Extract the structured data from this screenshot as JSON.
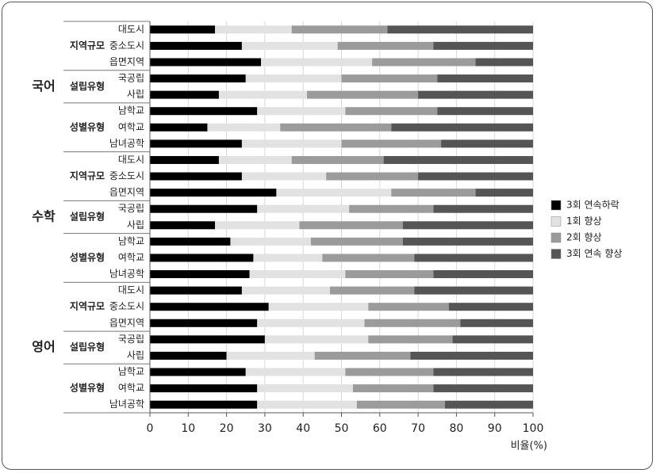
{
  "chart_data": {
    "type": "stacked-hbar",
    "groups": [
      {
        "name": "국어",
        "subgroups": [
          {
            "name": "지역규모",
            "categories": [
              "대도시",
              "중소도시",
              "읍면지역"
            ]
          },
          {
            "name": "설립유형",
            "categories": [
              "국공립",
              "사립"
            ]
          },
          {
            "name": "성별유형",
            "categories": [
              "남학교",
              "여학교",
              "남녀공학"
            ]
          }
        ]
      },
      {
        "name": "수학",
        "subgroups": [
          {
            "name": "지역규모",
            "categories": [
              "대도시",
              "중소도시",
              "읍면지역"
            ]
          },
          {
            "name": "설립유형",
            "categories": [
              "국공립",
              "사립"
            ]
          },
          {
            "name": "성별유형",
            "categories": [
              "남학교",
              "여학교",
              "남녀공학"
            ]
          }
        ]
      },
      {
        "name": "영어",
        "subgroups": [
          {
            "name": "지역규모",
            "categories": [
              "대도시",
              "중소도시",
              "읍면지역"
            ]
          },
          {
            "name": "설립유형",
            "categories": [
              "국공립",
              "사립"
            ]
          },
          {
            "name": "성별유형",
            "categories": [
              "남학교",
              "여학교",
              "남녀공학"
            ]
          }
        ]
      }
    ],
    "series": [
      {
        "name": "3회 연속하락",
        "color": "#000000",
        "values": [
          17,
          24,
          29,
          25,
          18,
          28,
          15,
          24,
          18,
          24,
          33,
          28,
          17,
          21,
          27,
          26,
          24,
          31,
          28,
          30,
          20,
          25,
          28,
          28
        ]
      },
      {
        "name": "1회 향상",
        "color": "#e2e2e2",
        "values": [
          20,
          25,
          29,
          25,
          23,
          23,
          19,
          26,
          19,
          22,
          30,
          24,
          22,
          21,
          18,
          25,
          23,
          26,
          28,
          27,
          23,
          26,
          25,
          26
        ]
      },
      {
        "name": "2회 향상",
        "color": "#9b9b9b",
        "values": [
          25,
          25,
          27,
          25,
          29,
          24,
          29,
          26,
          24,
          24,
          22,
          22,
          27,
          24,
          24,
          23,
          22,
          21,
          25,
          22,
          25,
          23,
          21,
          23
        ]
      },
      {
        "name": "3회 연속 향상",
        "color": "#555555",
        "values": [
          38,
          26,
          15,
          25,
          30,
          25,
          37,
          24,
          39,
          30,
          15,
          26,
          34,
          34,
          31,
          26,
          31,
          22,
          19,
          21,
          32,
          26,
          26,
          23
        ]
      }
    ],
    "x_label": "비율(%)",
    "xlim": [
      0,
      100
    ],
    "xticks": [
      0,
      10,
      20,
      30,
      40,
      50,
      60,
      70,
      80,
      90,
      100
    ],
    "grid": true,
    "legend": "right"
  }
}
